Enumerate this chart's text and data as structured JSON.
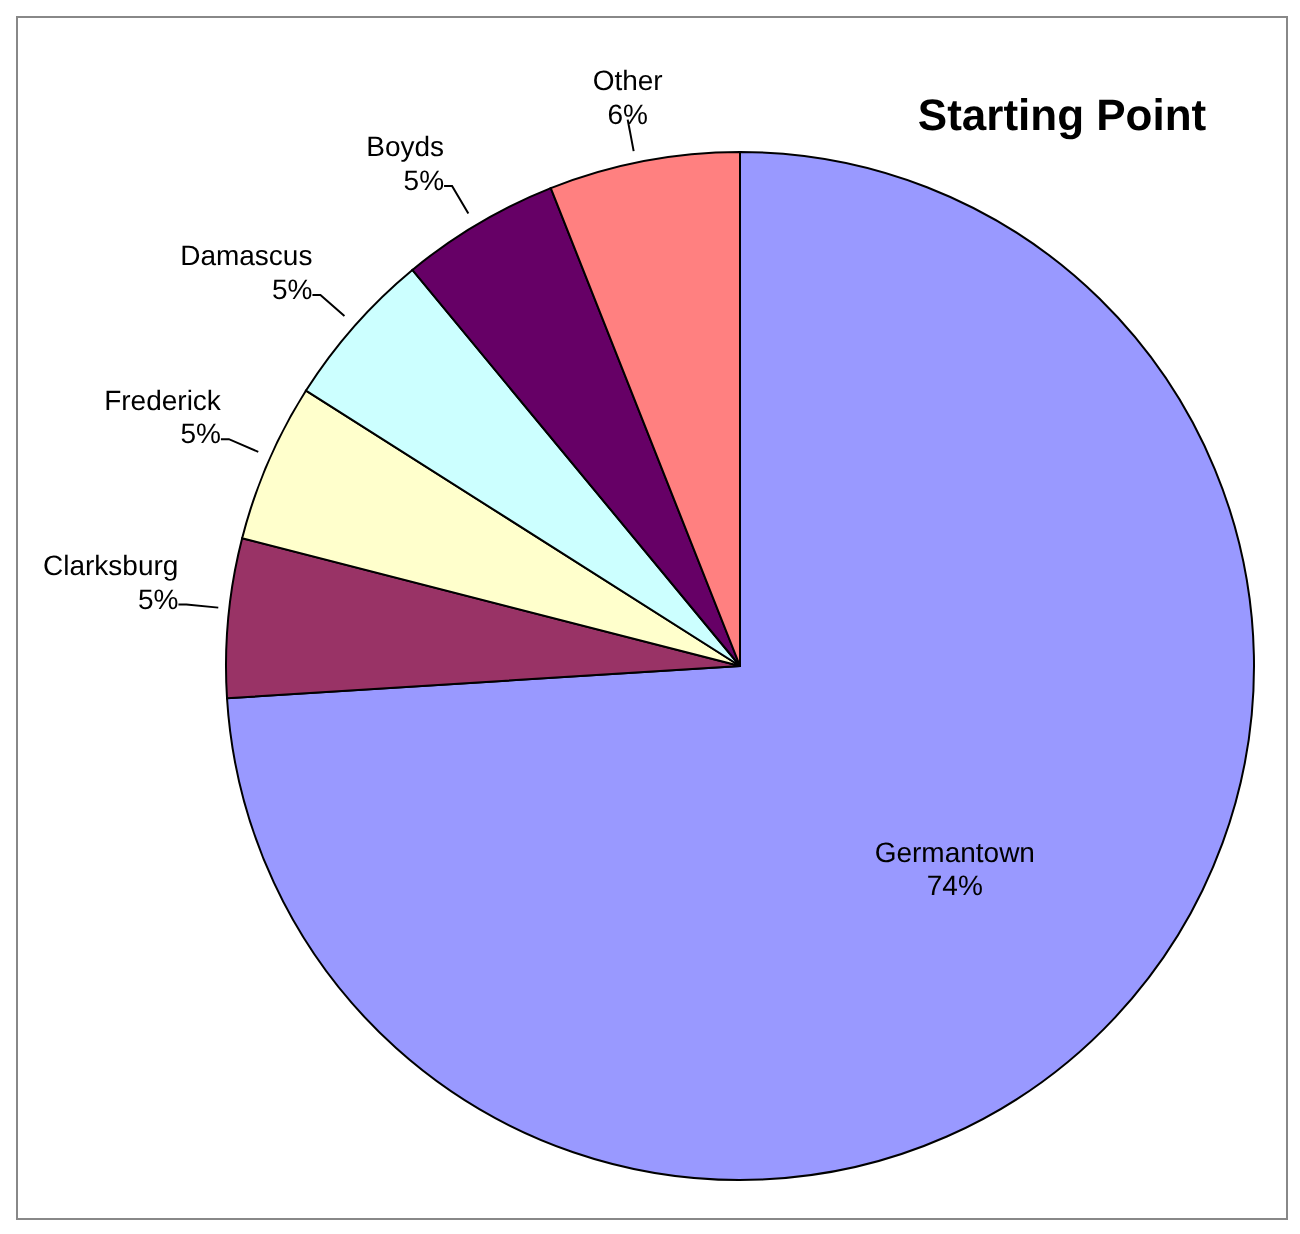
{
  "chart_data": {
    "type": "pie",
    "title": "Starting Point",
    "categories": [
      "Germantown",
      "Clarksburg",
      "Frederick",
      "Damascus",
      "Boyds",
      "Other"
    ],
    "values": [
      74,
      5,
      5,
      5,
      5,
      6
    ],
    "value_labels": [
      "74%",
      "5%",
      "5%",
      "5%",
      "5%",
      "6%"
    ],
    "colors": [
      "#9999ff",
      "#993366",
      "#ffffcc",
      "#ccffff",
      "#660066",
      "#ff8080"
    ],
    "legend": false
  }
}
